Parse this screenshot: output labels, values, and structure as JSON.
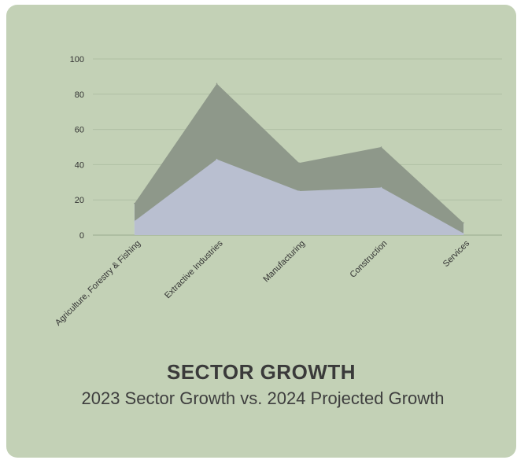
{
  "chart_data": {
    "type": "area",
    "title": "SECTOR GROWTH",
    "subtitle": "2023 Sector Growth vs. 2024 Projected Growth",
    "categories": [
      "Agriculture, Forestry & Fishing",
      "Extractive Industries",
      "Manufacturing",
      "Construction",
      "Services"
    ],
    "series": [
      {
        "values": [
          18,
          86,
          41,
          50,
          7
        ],
        "color": "#8e988a"
      },
      {
        "values": [
          8,
          43,
          25,
          27,
          1
        ],
        "color": "#b9bfd0"
      }
    ],
    "y_ticks": [
      0,
      20,
      40,
      60,
      80,
      100
    ],
    "ylim": [
      0,
      100
    ],
    "grid": true,
    "legend": "none"
  }
}
